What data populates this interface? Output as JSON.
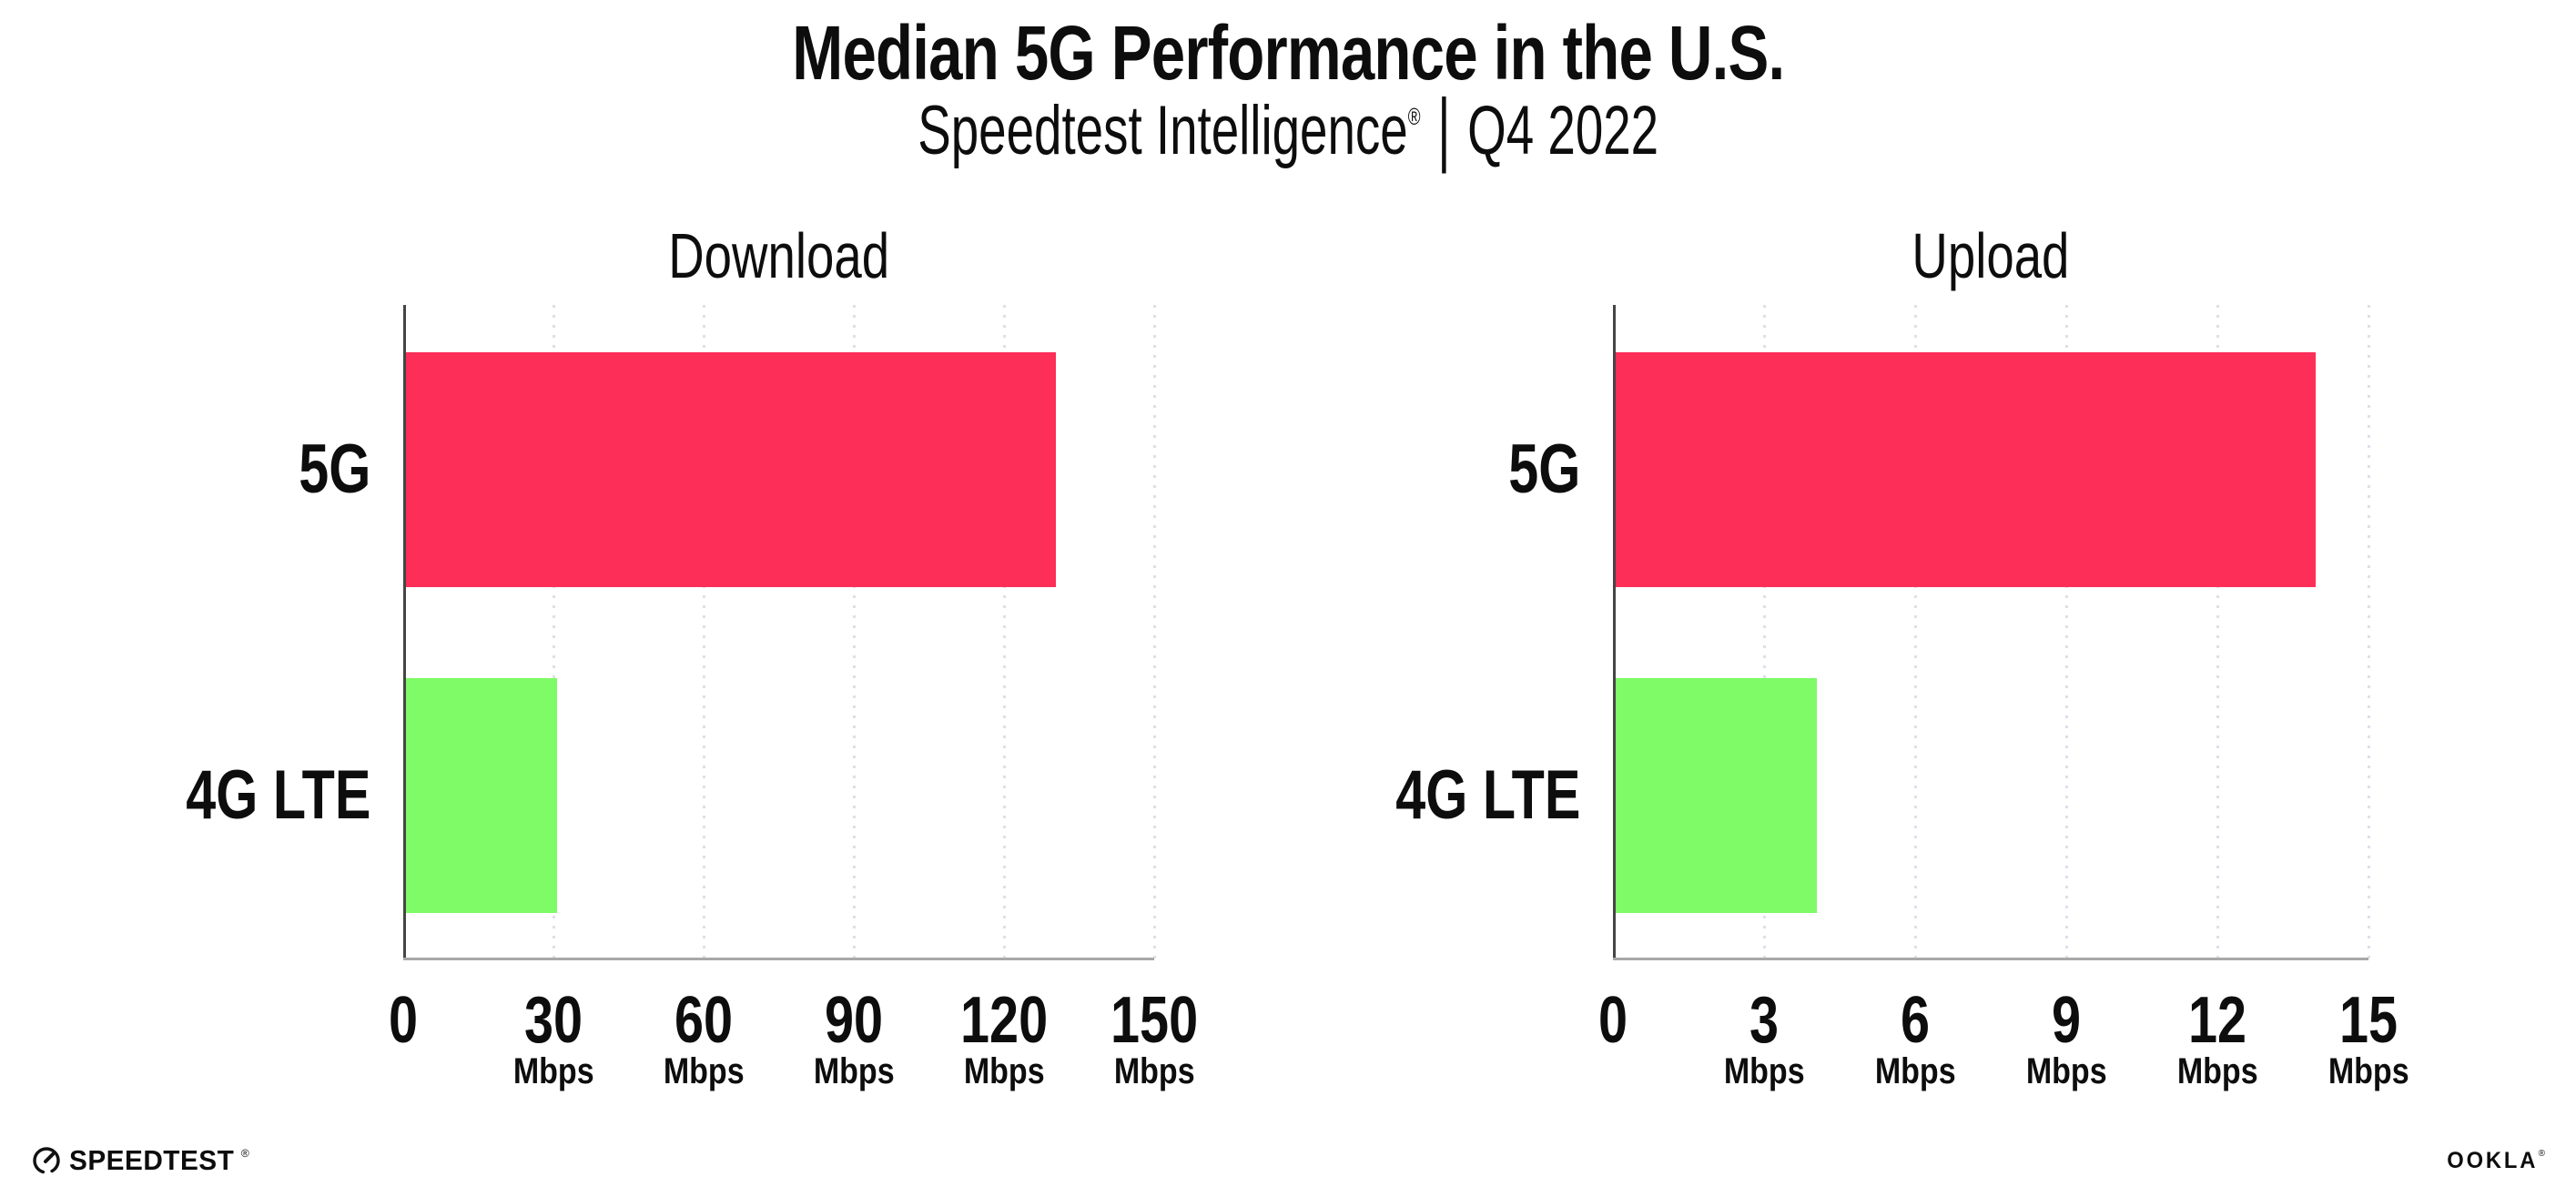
{
  "title": "Median 5G Performance in the U.S.",
  "subtitle": {
    "brand": "Speedtest Intelligence",
    "registered": "®",
    "divider": "|",
    "period": "Q4 2022"
  },
  "colors": {
    "bar_5g": "#fd2e58",
    "bar_4g_lte": "#7efb66",
    "gridline": "#dde0ea",
    "y_axis": "#454545",
    "x_axis": "#a8a8a8",
    "text": "#0d0d0d"
  },
  "chart_data": [
    {
      "type": "bar",
      "orientation": "horizontal",
      "title": "Download",
      "categories": [
        "5G",
        "4G LTE"
      ],
      "values": [
        129.8,
        30.2
      ],
      "unit": "Mbps",
      "xlim": [
        0,
        150
      ],
      "xticks": [
        0,
        30,
        60,
        90,
        120,
        150
      ],
      "xtick_sublabel": "Mbps",
      "sublabel_on_zero": false,
      "grid": "vertical-dotted",
      "legend": "none"
    },
    {
      "type": "bar",
      "orientation": "horizontal",
      "title": "Upload",
      "categories": [
        "5G",
        "4G LTE"
      ],
      "values": [
        13.9,
        4.0
      ],
      "unit": "Mbps",
      "xlim": [
        0,
        15
      ],
      "xticks": [
        0,
        3,
        6,
        9,
        12,
        15
      ],
      "xtick_sublabel": "Mbps",
      "sublabel_on_zero": false,
      "grid": "vertical-dotted",
      "legend": "none"
    }
  ],
  "footer": {
    "speedtest_label": "SPEEDTEST",
    "speedtest_trademark": "®",
    "gauge_icon": "speedtest-gauge-icon",
    "ookla_label": "OOKLA",
    "ookla_trademark": "®"
  }
}
